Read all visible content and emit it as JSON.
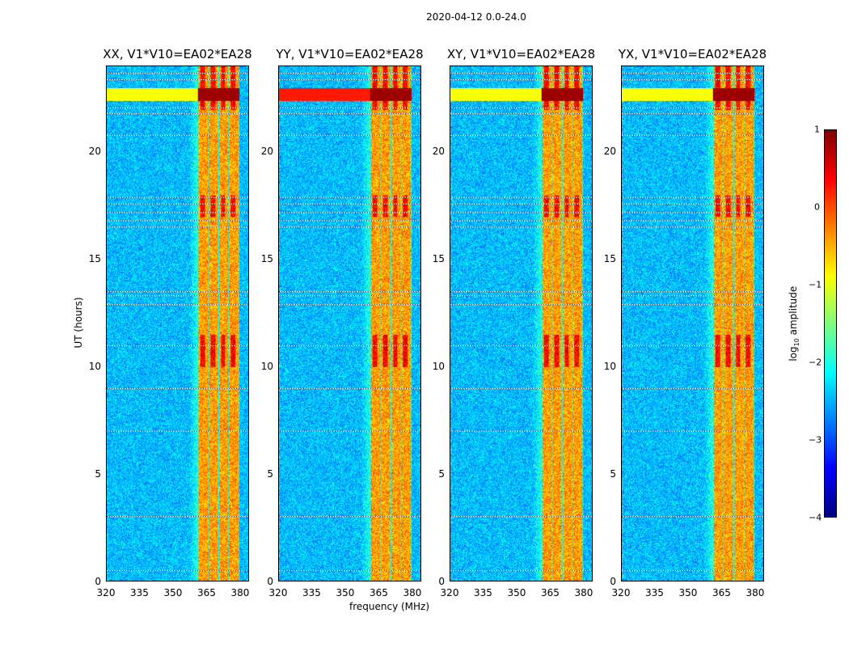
{
  "suptitle": "2020-04-12 0.0-24.0",
  "chart_data": {
    "type": "heatmap",
    "title": "2020-04-12 0.0-24.0",
    "xlabel": "frequency (MHz)",
    "ylabel": "UT (hours)",
    "xlim": [
      320,
      384
    ],
    "ylim": [
      0,
      24
    ],
    "xticks": [
      320,
      335,
      350,
      365,
      380
    ],
    "yticks": [
      0,
      5,
      10,
      15,
      20
    ],
    "panels": [
      {
        "title": "XX, V1*V10=EA02*EA28"
      },
      {
        "title": "YY, V1*V10=EA02*EA28"
      },
      {
        "title": "XY, V1*V10=EA02*EA28"
      },
      {
        "title": "YX, V1*V10=EA02*EA28"
      }
    ],
    "rfi_band_mhz": [
      361,
      380
    ],
    "strong_rfi_hours": [
      22.4,
      23.0
    ],
    "colorbar": {
      "label": "log10 amplitude",
      "label_main": "log",
      "label_sub": "10",
      "label_rest": " amplitude",
      "range": [
        -4,
        1
      ],
      "ticks": [
        "1",
        "0",
        "−1",
        "−2",
        "−3",
        "−4"
      ],
      "colormap": "jet"
    }
  }
}
